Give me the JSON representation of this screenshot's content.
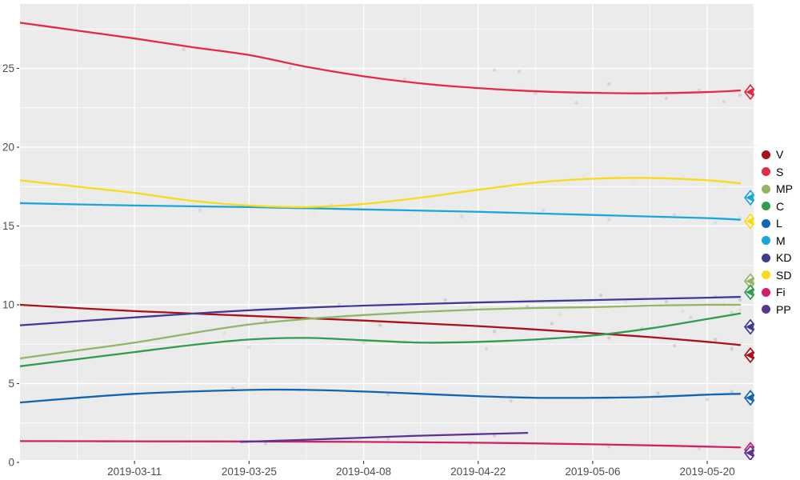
{
  "figure": {
    "panel_bg": "#ebebeb",
    "grid_major_color": "#ffffff",
    "grid_minor_color": "#ffffff",
    "axis_text_color": "#4d4d4d",
    "tick_color": "#333333"
  },
  "chart_data": {
    "type": "line",
    "title": "",
    "xlabel": "",
    "ylabel": "",
    "x_axis": {
      "tick_labels": [
        "2019-03-11",
        "2019-03-25",
        "2019-04-08",
        "2019-04-22",
        "2019-05-06",
        "2019-05-20"
      ],
      "tick_days": [
        14,
        28,
        42,
        56,
        70,
        84
      ],
      "minor_days": [
        7,
        21,
        35,
        49,
        63,
        77
      ],
      "domain_days": [
        0,
        89.7
      ],
      "start_date": "2019-02-25"
    },
    "y_axis": {
      "tick_labels": [
        "0",
        "5",
        "10",
        "15",
        "20",
        "25"
      ],
      "tick_values": [
        0,
        5,
        10,
        15,
        20,
        25
      ],
      "minor_values": [
        2.5,
        7.5,
        12.5,
        17.5,
        22.5,
        27.5
      ],
      "range": [
        0.15,
        29.1
      ]
    },
    "legend": {
      "position": "right",
      "entries": [
        "V",
        "S",
        "MP",
        "C",
        "L",
        "M",
        "KD",
        "SD",
        "Fi",
        "PP"
      ]
    },
    "series": [
      {
        "name": "V",
        "color": "#a9111b",
        "result": 6.8,
        "points": [
          [
            0,
            10.0
          ],
          [
            14,
            9.6
          ],
          [
            28,
            9.3
          ],
          [
            42,
            9.0
          ],
          [
            56,
            8.65
          ],
          [
            70,
            8.2
          ],
          [
            77,
            7.95
          ],
          [
            84,
            7.65
          ],
          [
            88,
            7.45
          ]
        ]
      },
      {
        "name": "S",
        "color": "#e42a47",
        "result": 23.5,
        "points": [
          [
            0,
            27.9
          ],
          [
            7,
            27.4
          ],
          [
            14,
            26.9
          ],
          [
            21,
            26.35
          ],
          [
            28,
            25.85
          ],
          [
            35,
            25.1
          ],
          [
            42,
            24.5
          ],
          [
            49,
            24.05
          ],
          [
            56,
            23.75
          ],
          [
            63,
            23.55
          ],
          [
            70,
            23.45
          ],
          [
            77,
            23.42
          ],
          [
            84,
            23.5
          ],
          [
            88,
            23.6
          ]
        ]
      },
      {
        "name": "MP",
        "color": "#93b566",
        "result": 11.5,
        "points": [
          [
            0,
            6.6
          ],
          [
            7,
            7.1
          ],
          [
            14,
            7.6
          ],
          [
            21,
            8.2
          ],
          [
            28,
            8.75
          ],
          [
            35,
            9.1
          ],
          [
            42,
            9.35
          ],
          [
            49,
            9.55
          ],
          [
            56,
            9.7
          ],
          [
            63,
            9.8
          ],
          [
            70,
            9.85
          ],
          [
            77,
            9.95
          ],
          [
            84,
            10.0
          ],
          [
            88,
            10.0
          ]
        ]
      },
      {
        "name": "C",
        "color": "#2e9e4d",
        "result": 10.8,
        "points": [
          [
            0,
            6.1
          ],
          [
            7,
            6.55
          ],
          [
            14,
            7.0
          ],
          [
            21,
            7.45
          ],
          [
            28,
            7.8
          ],
          [
            35,
            7.9
          ],
          [
            42,
            7.75
          ],
          [
            49,
            7.6
          ],
          [
            56,
            7.65
          ],
          [
            63,
            7.8
          ],
          [
            70,
            8.05
          ],
          [
            77,
            8.5
          ],
          [
            84,
            9.1
          ],
          [
            88,
            9.45
          ]
        ]
      },
      {
        "name": "L",
        "color": "#1165b0",
        "result": 4.1,
        "points": [
          [
            0,
            3.8
          ],
          [
            14,
            4.35
          ],
          [
            28,
            4.6
          ],
          [
            35,
            4.6
          ],
          [
            42,
            4.5
          ],
          [
            49,
            4.35
          ],
          [
            56,
            4.2
          ],
          [
            63,
            4.1
          ],
          [
            70,
            4.1
          ],
          [
            77,
            4.15
          ],
          [
            84,
            4.3
          ],
          [
            88,
            4.35
          ]
        ]
      },
      {
        "name": "M",
        "color": "#1aa5db",
        "result": 16.8,
        "points": [
          [
            0,
            16.45
          ],
          [
            14,
            16.3
          ],
          [
            28,
            16.2
          ],
          [
            42,
            16.05
          ],
          [
            56,
            15.9
          ],
          [
            70,
            15.7
          ],
          [
            84,
            15.5
          ],
          [
            88,
            15.4
          ]
        ]
      },
      {
        "name": "KD",
        "color": "#3e3b97",
        "result": 8.6,
        "points": [
          [
            0,
            8.7
          ],
          [
            14,
            9.2
          ],
          [
            28,
            9.65
          ],
          [
            42,
            9.95
          ],
          [
            56,
            10.15
          ],
          [
            70,
            10.3
          ],
          [
            84,
            10.45
          ],
          [
            88,
            10.5
          ]
        ]
      },
      {
        "name": "SD",
        "color": "#fbda17",
        "result": 15.3,
        "points": [
          [
            0,
            17.9
          ],
          [
            7,
            17.5
          ],
          [
            14,
            17.1
          ],
          [
            21,
            16.6
          ],
          [
            28,
            16.3
          ],
          [
            35,
            16.2
          ],
          [
            42,
            16.4
          ],
          [
            49,
            16.8
          ],
          [
            56,
            17.3
          ],
          [
            63,
            17.75
          ],
          [
            70,
            18.0
          ],
          [
            77,
            18.05
          ],
          [
            84,
            17.9
          ],
          [
            88,
            17.7
          ]
        ]
      },
      {
        "name": "Fi",
        "color": "#d02168",
        "result": 0.8,
        "points": [
          [
            0,
            1.35
          ],
          [
            14,
            1.34
          ],
          [
            28,
            1.33
          ],
          [
            42,
            1.3
          ],
          [
            56,
            1.25
          ],
          [
            70,
            1.15
          ],
          [
            80,
            1.05
          ],
          [
            88,
            0.95
          ]
        ]
      },
      {
        "name": "PP",
        "color": "#5a3394",
        "result": 0.6,
        "points": [
          [
            27,
            1.3
          ],
          [
            34,
            1.42
          ],
          [
            41,
            1.55
          ],
          [
            48,
            1.68
          ],
          [
            55,
            1.78
          ],
          [
            62,
            1.87
          ]
        ]
      }
    ],
    "scatter": [
      {
        "p": "S",
        "d": 20,
        "v": 26.2
      },
      {
        "p": "S",
        "d": 33,
        "v": 25.0
      },
      {
        "p": "S",
        "d": 47,
        "v": 24.3
      },
      {
        "p": "S",
        "d": 58,
        "v": 24.9
      },
      {
        "p": "S",
        "d": 61,
        "v": 24.8
      },
      {
        "p": "S",
        "d": 63,
        "v": 23.4
      },
      {
        "p": "S",
        "d": 68,
        "v": 22.8
      },
      {
        "p": "S",
        "d": 72,
        "v": 24.0
      },
      {
        "p": "S",
        "d": 79,
        "v": 23.1
      },
      {
        "p": "S",
        "d": 83,
        "v": 23.6
      },
      {
        "p": "S",
        "d": 86,
        "v": 22.9
      },
      {
        "p": "S",
        "d": 88,
        "v": 23.3
      },
      {
        "p": "V",
        "d": 30,
        "v": 9.0
      },
      {
        "p": "V",
        "d": 44,
        "v": 8.7
      },
      {
        "p": "V",
        "d": 58,
        "v": 8.3
      },
      {
        "p": "V",
        "d": 65,
        "v": 8.8
      },
      {
        "p": "V",
        "d": 72,
        "v": 7.9
      },
      {
        "p": "V",
        "d": 80,
        "v": 7.4
      },
      {
        "p": "V",
        "d": 85,
        "v": 7.8
      },
      {
        "p": "V",
        "d": 87,
        "v": 7.2
      },
      {
        "p": "MP",
        "d": 25,
        "v": 8.2
      },
      {
        "p": "MP",
        "d": 40,
        "v": 9.3
      },
      {
        "p": "MP",
        "d": 55,
        "v": 9.9
      },
      {
        "p": "MP",
        "d": 66,
        "v": 9.4
      },
      {
        "p": "MP",
        "d": 74,
        "v": 10.2
      },
      {
        "p": "MP",
        "d": 81,
        "v": 9.6
      },
      {
        "p": "MP",
        "d": 86,
        "v": 10.0
      },
      {
        "p": "MP",
        "d": 88,
        "v": 9.7
      },
      {
        "p": "C",
        "d": 28,
        "v": 7.3
      },
      {
        "p": "C",
        "d": 42,
        "v": 7.6
      },
      {
        "p": "C",
        "d": 57,
        "v": 7.2
      },
      {
        "p": "C",
        "d": 68,
        "v": 7.9
      },
      {
        "p": "C",
        "d": 76,
        "v": 8.5
      },
      {
        "p": "C",
        "d": 82,
        "v": 9.2
      },
      {
        "p": "C",
        "d": 87,
        "v": 9.5
      },
      {
        "p": "L",
        "d": 26,
        "v": 4.7
      },
      {
        "p": "L",
        "d": 45,
        "v": 4.3
      },
      {
        "p": "L",
        "d": 60,
        "v": 3.9
      },
      {
        "p": "L",
        "d": 70,
        "v": 4.1
      },
      {
        "p": "L",
        "d": 78,
        "v": 4.4
      },
      {
        "p": "L",
        "d": 84,
        "v": 4.0
      },
      {
        "p": "L",
        "d": 87,
        "v": 4.5
      },
      {
        "p": "M",
        "d": 22,
        "v": 16.0
      },
      {
        "p": "M",
        "d": 38,
        "v": 16.3
      },
      {
        "p": "M",
        "d": 54,
        "v": 15.6
      },
      {
        "p": "M",
        "d": 64,
        "v": 16.0
      },
      {
        "p": "M",
        "d": 72,
        "v": 15.4
      },
      {
        "p": "M",
        "d": 80,
        "v": 15.7
      },
      {
        "p": "M",
        "d": 85,
        "v": 15.2
      },
      {
        "p": "M",
        "d": 88,
        "v": 15.5
      },
      {
        "p": "KD",
        "d": 24,
        "v": 9.5
      },
      {
        "p": "KD",
        "d": 39,
        "v": 10.0
      },
      {
        "p": "KD",
        "d": 52,
        "v": 10.3
      },
      {
        "p": "KD",
        "d": 62,
        "v": 9.9
      },
      {
        "p": "KD",
        "d": 71,
        "v": 10.6
      },
      {
        "p": "KD",
        "d": 79,
        "v": 10.2
      },
      {
        "p": "KD",
        "d": 85,
        "v": 10.5
      },
      {
        "p": "KD",
        "d": 88,
        "v": 10.3
      },
      {
        "p": "SD",
        "d": 21,
        "v": 16.4
      },
      {
        "p": "SD",
        "d": 36,
        "v": 15.8
      },
      {
        "p": "SD",
        "d": 50,
        "v": 16.8
      },
      {
        "p": "SD",
        "d": 61,
        "v": 17.8
      },
      {
        "p": "SD",
        "d": 69,
        "v": 18.2
      },
      {
        "p": "SD",
        "d": 75,
        "v": 17.7
      },
      {
        "p": "SD",
        "d": 81,
        "v": 18.2
      },
      {
        "p": "SD",
        "d": 86,
        "v": 17.4
      },
      {
        "p": "SD",
        "d": 88,
        "v": 17.8
      },
      {
        "p": "Fi",
        "d": 35,
        "v": 1.4
      },
      {
        "p": "Fi",
        "d": 55,
        "v": 1.2
      },
      {
        "p": "Fi",
        "d": 72,
        "v": 1.0
      },
      {
        "p": "Fi",
        "d": 83,
        "v": 0.9
      },
      {
        "p": "PP",
        "d": 30,
        "v": 1.2
      },
      {
        "p": "PP",
        "d": 45,
        "v": 1.5
      },
      {
        "p": "PP",
        "d": 58,
        "v": 1.7
      }
    ]
  }
}
